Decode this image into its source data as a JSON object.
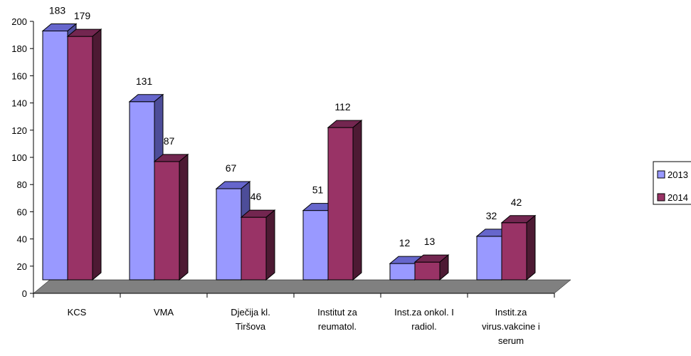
{
  "chart_data": {
    "type": "bar",
    "categories": [
      [
        "KCS"
      ],
      [
        "VMA"
      ],
      [
        "Dječija kl.",
        "Tiršova"
      ],
      [
        "Institut za",
        "reumatol."
      ],
      [
        "Inst.za onkol. I",
        "radiol."
      ],
      [
        "Instit.za",
        "virus.vakcine i",
        "serum"
      ]
    ],
    "series": [
      {
        "name": "2013",
        "values": [
          183,
          131,
          67,
          51,
          12,
          32
        ],
        "color": "#9999FF",
        "top_color": "#6666CC",
        "side_color": "#4D4D99"
      },
      {
        "name": "2014",
        "values": [
          179,
          87,
          46,
          112,
          13,
          42
        ],
        "color": "#993366",
        "top_color": "#732650",
        "side_color": "#4D1A33"
      }
    ],
    "ylim": [
      0,
      200
    ],
    "yticks": [
      0,
      20,
      40,
      60,
      80,
      100,
      120,
      140,
      160,
      180,
      200
    ],
    "grid": false,
    "three_d": true,
    "floor_color": "#808080",
    "legend_position": "right"
  }
}
